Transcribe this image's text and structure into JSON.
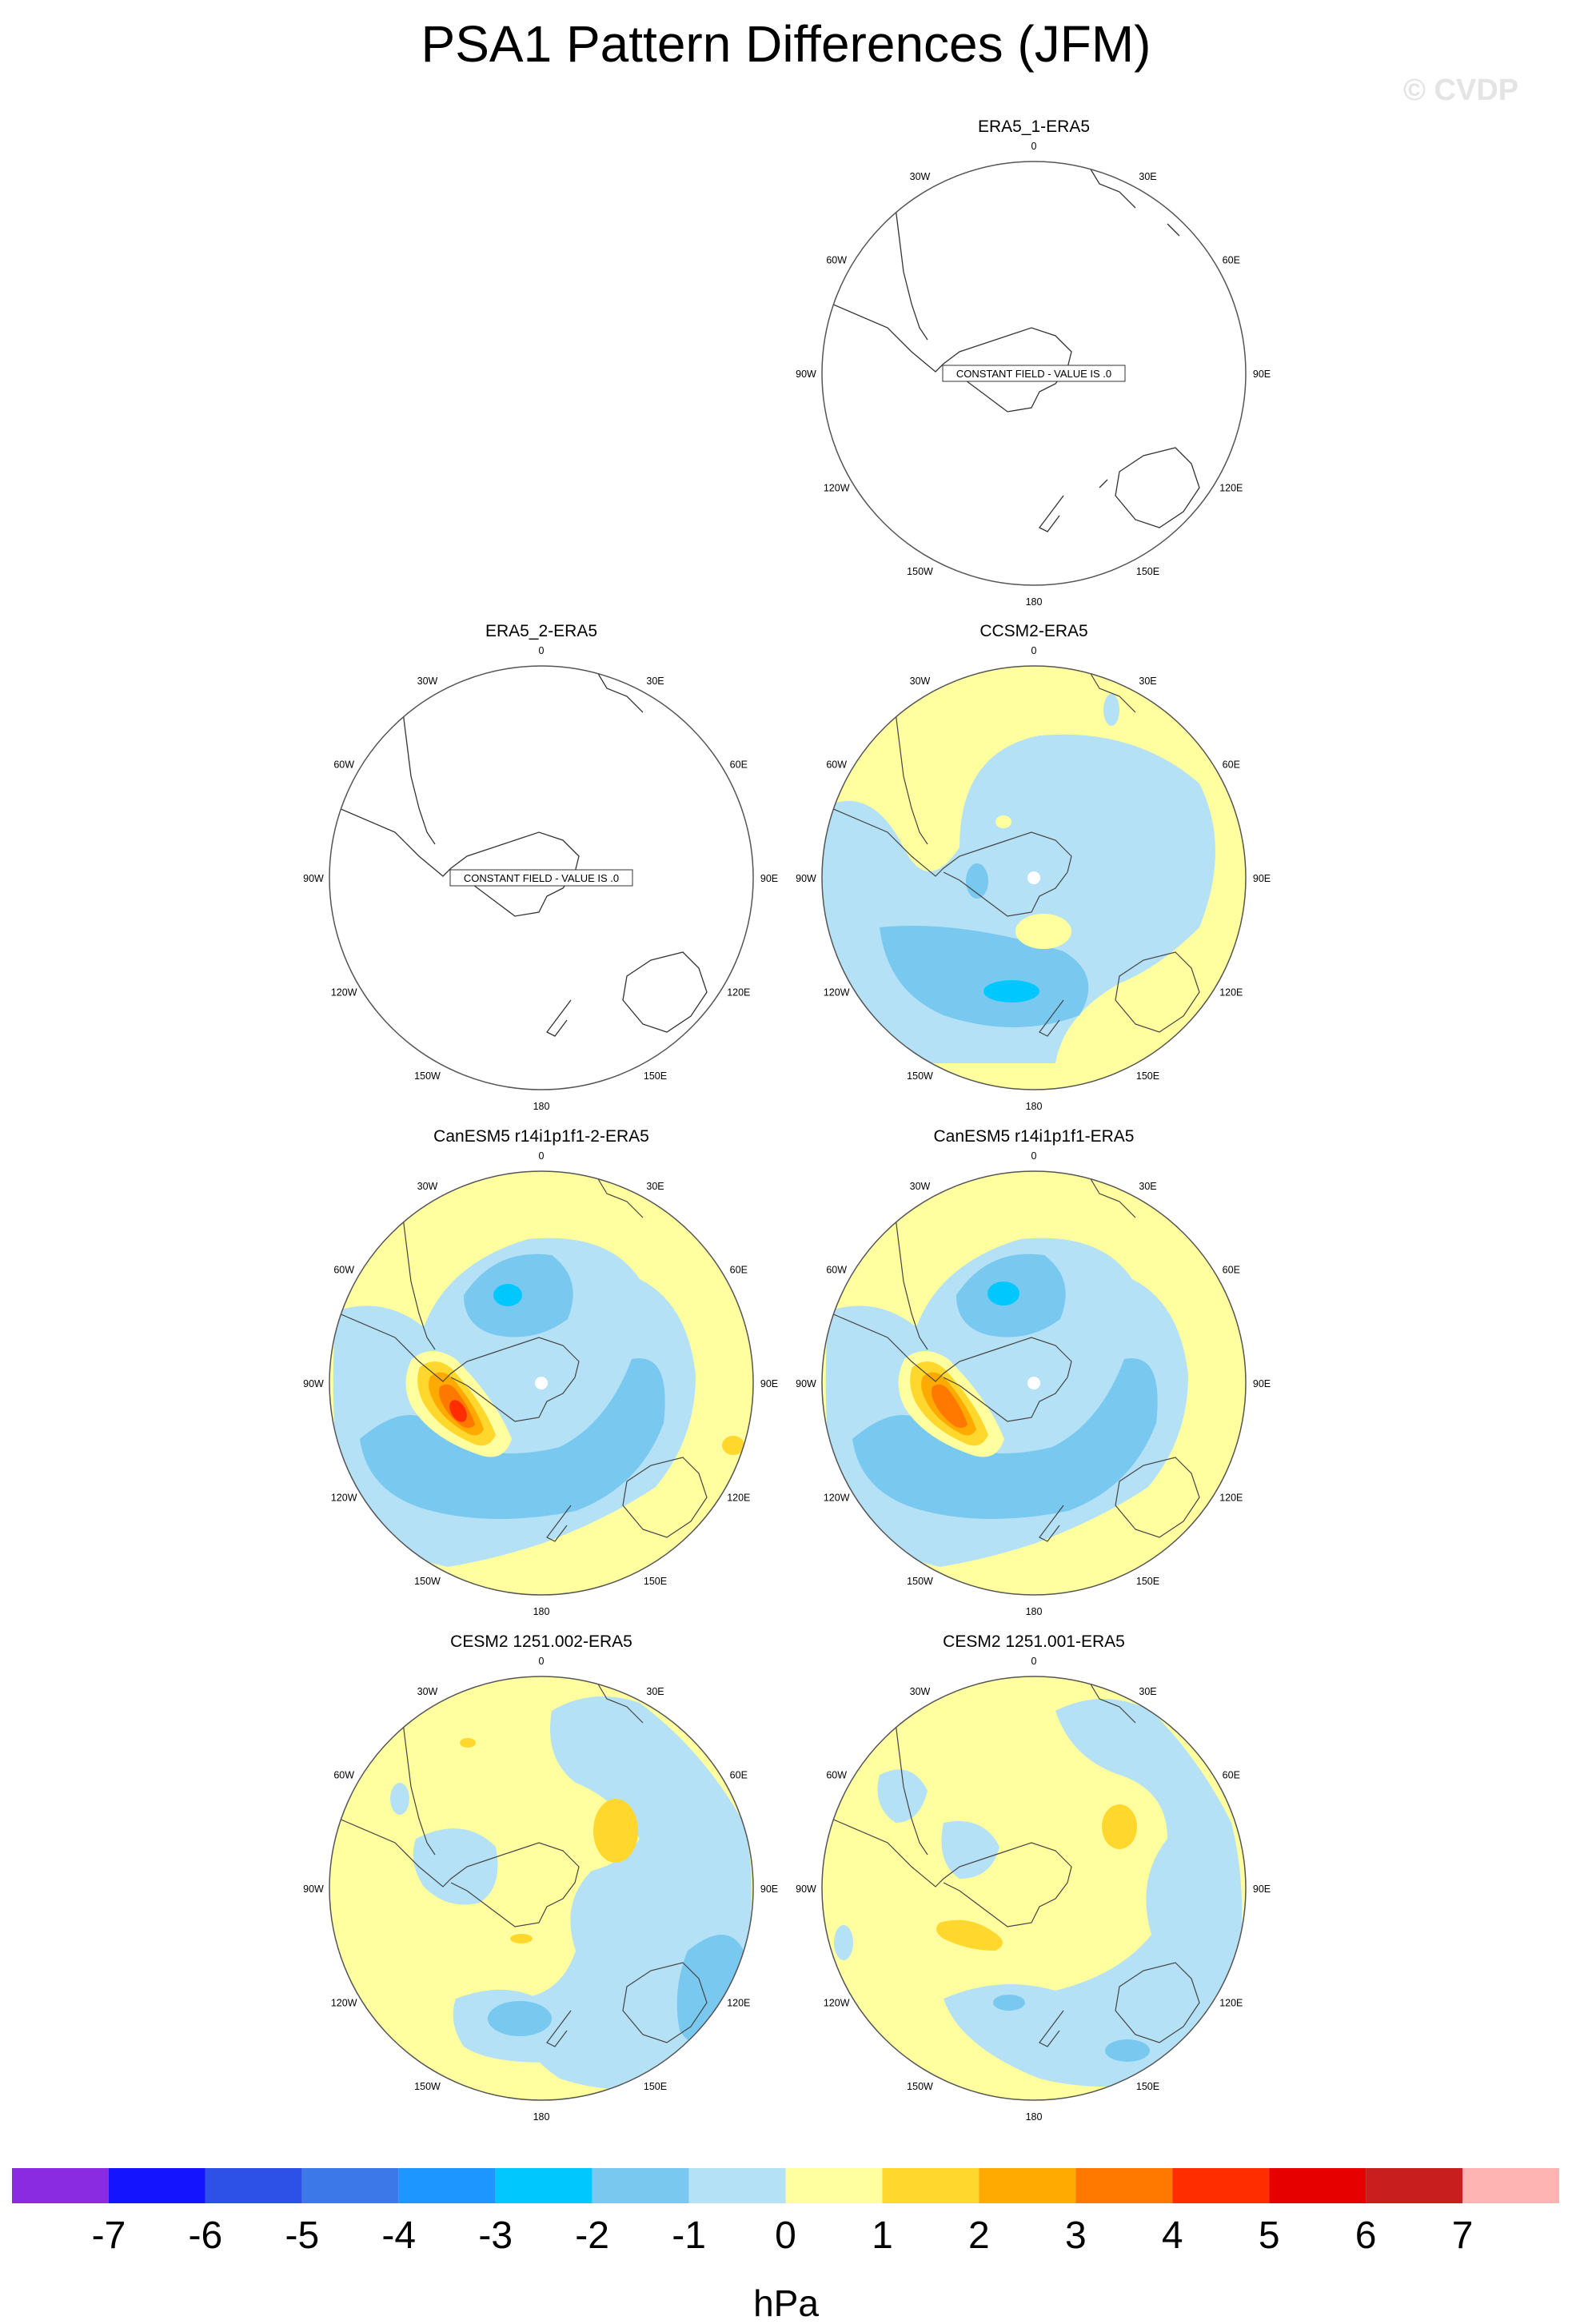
{
  "title": "PSA1 Pattern Differences (JFM)",
  "watermark": "© CVDP",
  "lon_labels": {
    "top": "0",
    "upper_right": "30E",
    "right_upper": "60E",
    "right": "90E",
    "right_lower": "120E",
    "lower_right": "150E",
    "bottom": "180",
    "lower_left": "150W",
    "left_lower": "120W",
    "left": "90W",
    "left_upper": "60W",
    "upper_left": "30W"
  },
  "panels": [
    {
      "id": "era5-1",
      "title": "ERA5_1-ERA5",
      "constant": true,
      "constant_text": "CONSTANT FIELD - VALUE IS .0"
    },
    {
      "id": "era5-2",
      "title": "ERA5_2-ERA5",
      "constant": true,
      "constant_text": "CONSTANT FIELD - VALUE IS .0"
    },
    {
      "id": "ccsm2",
      "title": "CCSM2-ERA5",
      "constant": false
    },
    {
      "id": "canesm5-2",
      "title": "CanESM5 r14i1p1f1-2-ERA5",
      "constant": false
    },
    {
      "id": "canesm5",
      "title": "CanESM5 r14i1p1f1-ERA5",
      "constant": false
    },
    {
      "id": "cesm2-002",
      "title": "CESM2 1251.002-ERA5",
      "constant": false
    },
    {
      "id": "cesm2-001",
      "title": "CESM2 1251.001-ERA5",
      "constant": false
    }
  ],
  "colorbar": {
    "unit": "hPa",
    "labels": [
      "-7",
      "-6",
      "-5",
      "-4",
      "-3",
      "-2",
      "-1",
      "0",
      "1",
      "2",
      "3",
      "4",
      "5",
      "6",
      "7"
    ],
    "colors": [
      "#8a2be2",
      "#1414ff",
      "#2d50e6",
      "#3c78e8",
      "#1e96ff",
      "#00c8ff",
      "#78c8f0",
      "#b4e1f5",
      "#ffffa0",
      "#ffd72d",
      "#ffaa00",
      "#ff7800",
      "#ff2d00",
      "#e60000",
      "#c81e1e",
      "#ffb4b4"
    ]
  }
}
